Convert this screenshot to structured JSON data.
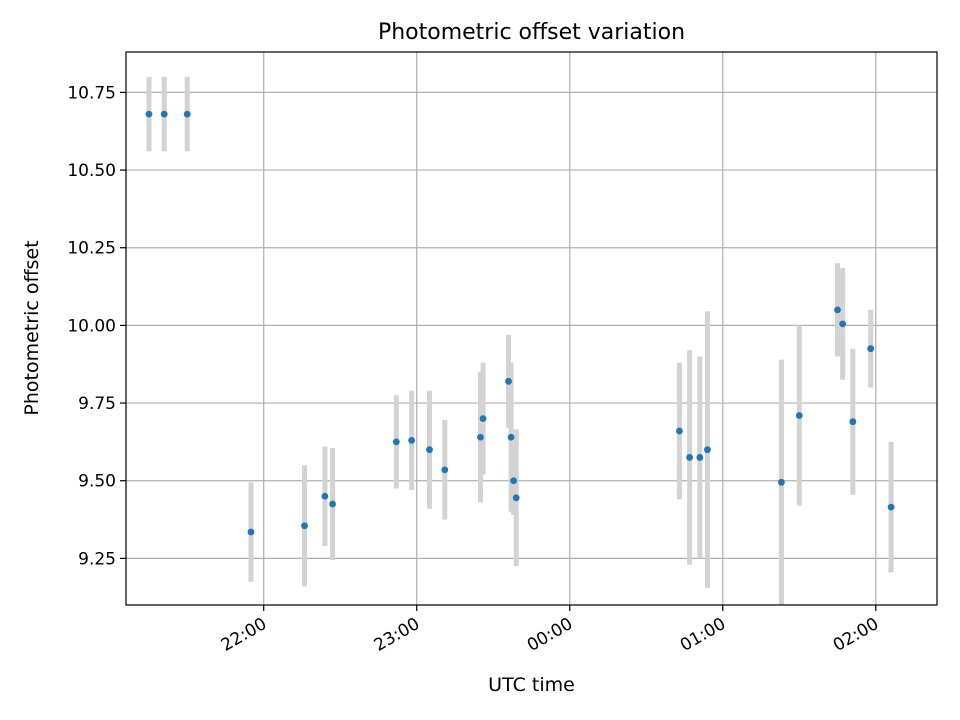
{
  "chart_data": {
    "type": "scatter",
    "title": "Photometric offset variation",
    "xlabel": "UTC time",
    "ylabel": "Photometric offset",
    "x_ticks": [
      "22:00",
      "23:00",
      "00:00",
      "01:00",
      "02:00"
    ],
    "y_ticks": [
      "9.25",
      "9.50",
      "9.75",
      "10.00",
      "10.25",
      "10.50",
      "10.75"
    ],
    "xlim": [
      "21:06",
      "02:24"
    ],
    "ylim": [
      9.1,
      10.88
    ],
    "grid": true,
    "colors": {
      "point": "#1f77b4",
      "errorbar": "#d3d3d3",
      "grid": "#b0b0b0"
    },
    "points": [
      {
        "x": "21:15",
        "y": 10.68,
        "err": 0.12
      },
      {
        "x": "21:21",
        "y": 10.68,
        "err": 0.12
      },
      {
        "x": "21:30",
        "y": 10.68,
        "err": 0.12
      },
      {
        "x": "21:55",
        "y": 9.335,
        "err": 0.16
      },
      {
        "x": "22:16",
        "y": 9.355,
        "err": 0.195
      },
      {
        "x": "22:24",
        "y": 9.45,
        "err": 0.16
      },
      {
        "x": "22:27",
        "y": 9.425,
        "err": 0.18
      },
      {
        "x": "22:52",
        "y": 9.625,
        "err": 0.15
      },
      {
        "x": "22:58",
        "y": 9.63,
        "err": 0.16
      },
      {
        "x": "23:05",
        "y": 9.6,
        "err": 0.19
      },
      {
        "x": "23:11",
        "y": 9.535,
        "err": 0.16
      },
      {
        "x": "23:25",
        "y": 9.64,
        "err": 0.21
      },
      {
        "x": "23:26",
        "y": 9.7,
        "err": 0.18
      },
      {
        "x": "23:36",
        "y": 9.82,
        "err": 0.15
      },
      {
        "x": "23:37",
        "y": 9.64,
        "err": 0.24
      },
      {
        "x": "23:38",
        "y": 9.5,
        "err": 0.11
      },
      {
        "x": "23:39",
        "y": 9.445,
        "err": 0.22
      },
      {
        "x": "00:43",
        "y": 9.66,
        "err": 0.22
      },
      {
        "x": "00:47",
        "y": 9.575,
        "err": 0.345
      },
      {
        "x": "00:51",
        "y": 9.575,
        "err": 0.325
      },
      {
        "x": "00:54",
        "y": 9.6,
        "err": 0.445
      },
      {
        "x": "01:23",
        "y": 9.495,
        "err": 0.395
      },
      {
        "x": "01:30",
        "y": 9.71,
        "err": 0.29
      },
      {
        "x": "01:45",
        "y": 10.05,
        "err": 0.15
      },
      {
        "x": "01:47",
        "y": 10.005,
        "err": 0.18
      },
      {
        "x": "01:51",
        "y": 9.69,
        "err": 0.235
      },
      {
        "x": "01:58",
        "y": 9.925,
        "err": 0.125
      },
      {
        "x": "02:06",
        "y": 9.415,
        "err": 0.21
      }
    ]
  }
}
